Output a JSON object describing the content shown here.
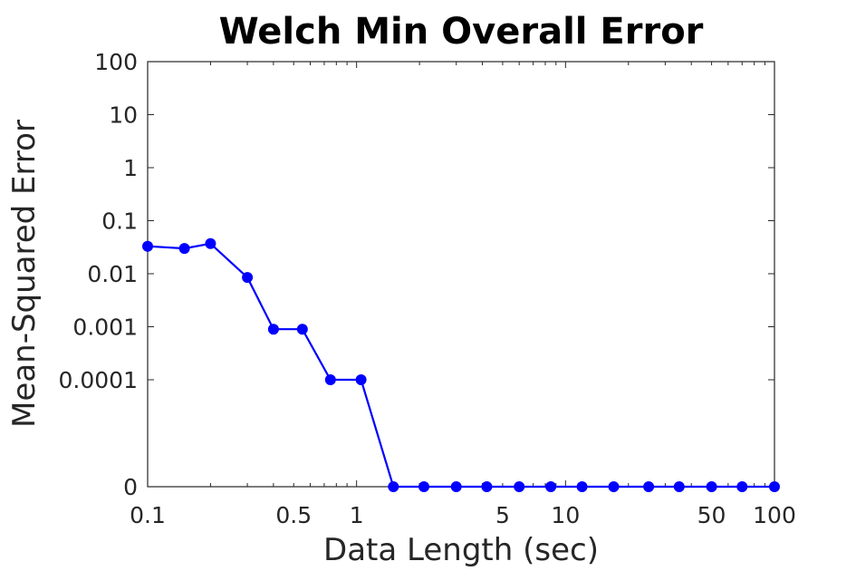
{
  "chart_data": {
    "type": "line",
    "title": "Welch Min Overall Error",
    "xlabel": "Data Length (sec)",
    "ylabel": "Mean-Squared Error",
    "x_scale": "log",
    "y_scale": "log",
    "xlim": [
      0.1,
      100
    ],
    "x_ticks": [
      {
        "value": 0.1,
        "label": "0.1"
      },
      {
        "value": 0.5,
        "label": "0.5"
      },
      {
        "value": 1,
        "label": "1"
      },
      {
        "value": 5,
        "label": "5"
      },
      {
        "value": 10,
        "label": "10"
      },
      {
        "value": 50,
        "label": "50"
      },
      {
        "value": 100,
        "label": "100"
      }
    ],
    "y_ticks": [
      {
        "value": 0,
        "label": "0"
      },
      {
        "value": 0.0001,
        "label": "0.0001"
      },
      {
        "value": 0.001,
        "label": "0.001"
      },
      {
        "value": 0.01,
        "label": "0.01"
      },
      {
        "value": 0.1,
        "label": "0.1"
      },
      {
        "value": 1,
        "label": "1"
      },
      {
        "value": 10,
        "label": "10"
      },
      {
        "value": 100,
        "label": "100"
      }
    ],
    "grid": false,
    "series": [
      {
        "color": "#0000ff",
        "marker": "circle",
        "x": [
          0.1,
          0.15,
          0.2,
          0.3,
          0.4,
          0.55,
          0.75,
          1.05,
          1.5,
          2.1,
          3,
          4.2,
          6,
          8.5,
          12,
          17,
          25,
          35,
          50,
          70,
          100
        ],
        "y": [
          0.033,
          0.03,
          0.037,
          0.0085,
          0.0009,
          0.0009,
          0.0001,
          0.0001,
          0,
          0,
          0,
          0,
          0,
          0,
          0,
          0,
          0,
          0,
          0,
          0,
          0
        ]
      }
    ]
  }
}
